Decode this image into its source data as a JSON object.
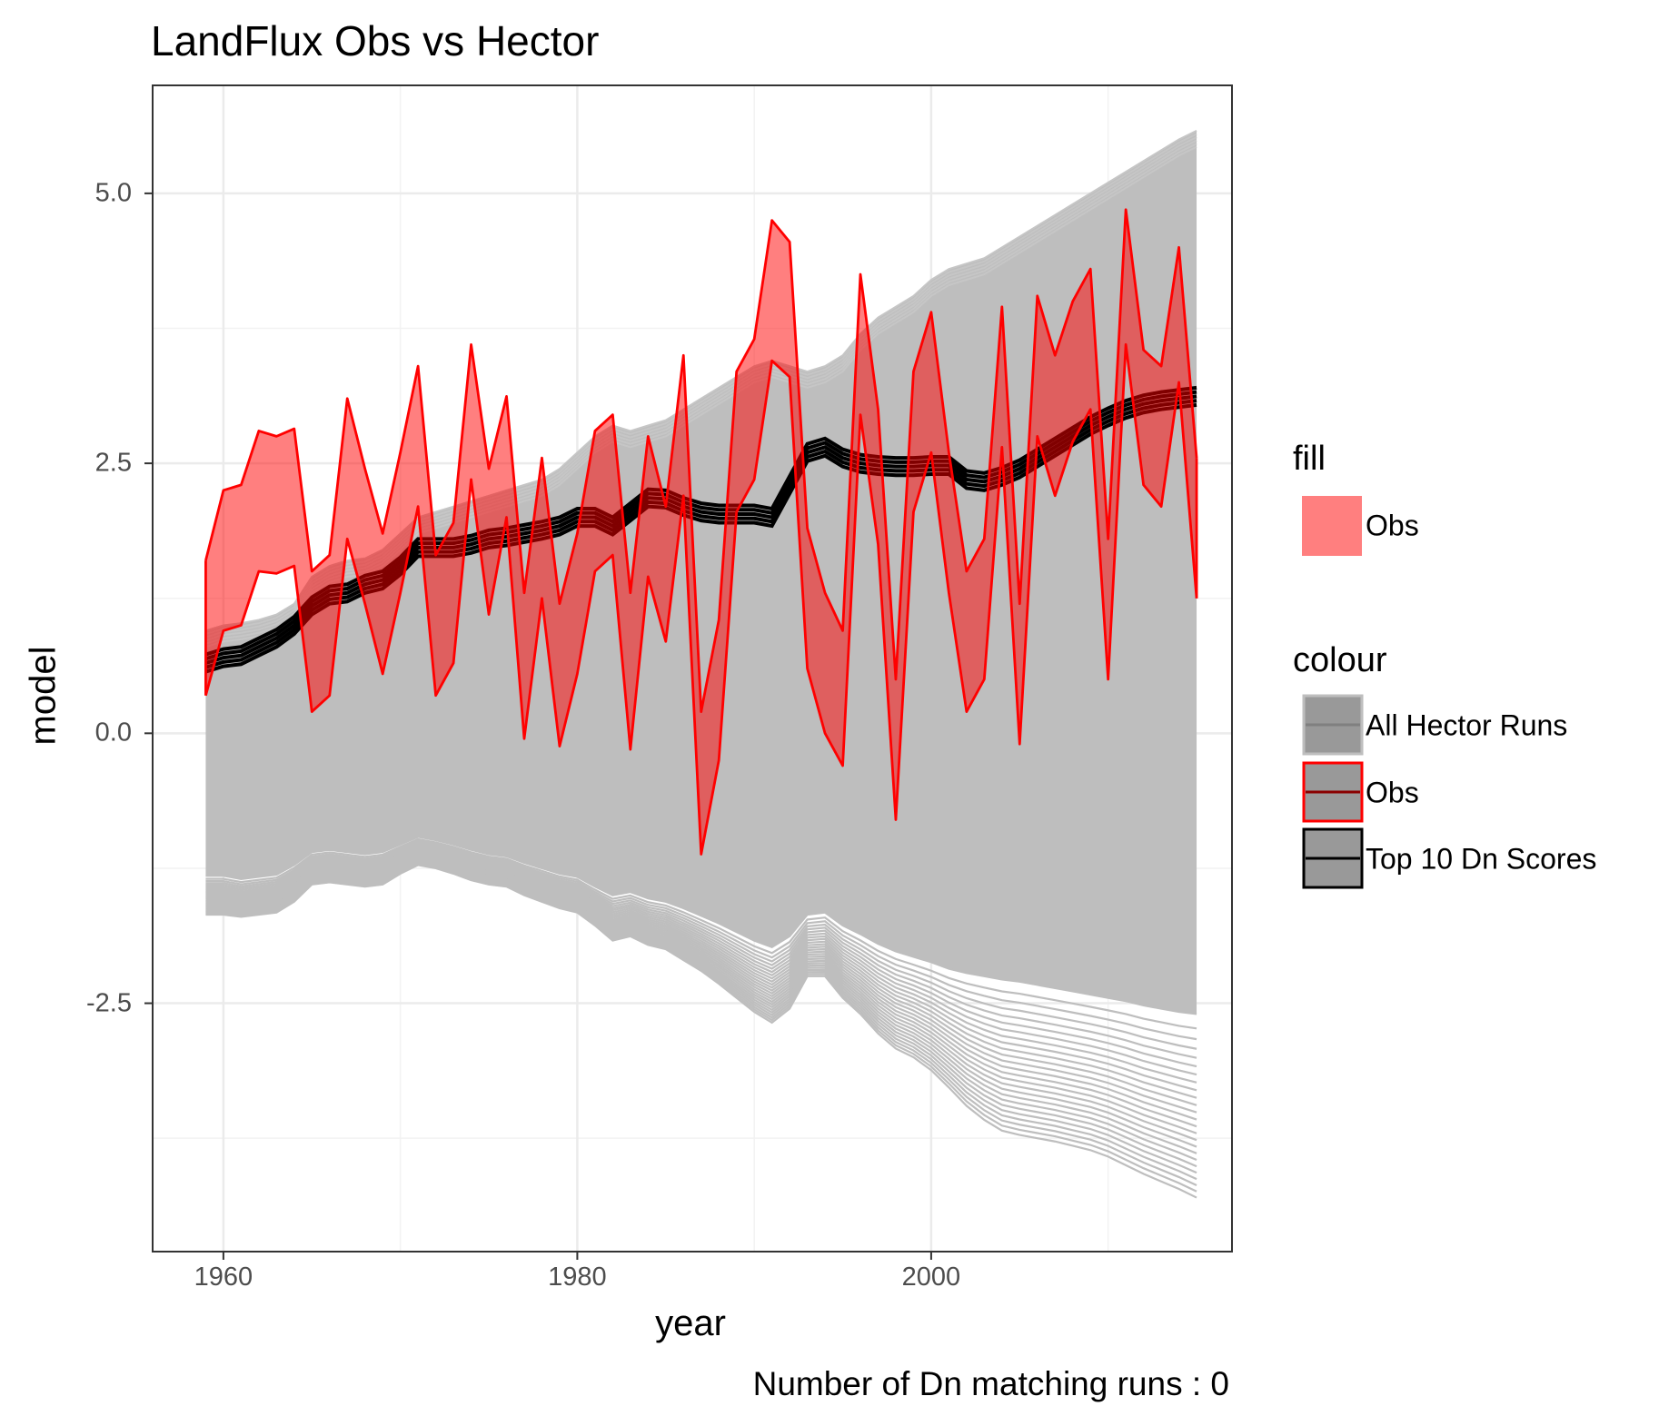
{
  "chart_data": {
    "type": "line",
    "title": "LandFlux Obs vs Hector",
    "xlabel": "year",
    "ylabel": "model",
    "caption": "Number of Dn matching runs : 0",
    "xlim": [
      1956,
      2017
    ],
    "ylim": [
      -4.8,
      6.0
    ],
    "x_ticks": [
      1960,
      1980,
      2000
    ],
    "y_ticks": [
      5.0,
      2.5,
      0.0,
      -2.5
    ],
    "y_tick_labels": [
      "5.0",
      "2.5",
      "0.0",
      "-2.5"
    ],
    "grid": true,
    "legend_position": "right",
    "legends": [
      {
        "title": "fill",
        "entries": [
          {
            "label": "Obs",
            "fill": "#FF7F7F"
          }
        ]
      },
      {
        "title": "colour",
        "entries": [
          {
            "label": "All Hector Runs",
            "color": "#808080"
          },
          {
            "label": "Obs",
            "color": "#FF0000"
          },
          {
            "label": "Top 10 Dn Scores",
            "color": "#000000"
          }
        ]
      }
    ],
    "colors": {
      "hector": "#BEBEBE",
      "obs_line": "#FF0000",
      "obs_fill": "#FF0000",
      "top10": "#000000"
    },
    "obs_years": [
      1959,
      1960,
      1961,
      1962,
      1963,
      1964,
      1965,
      1966,
      1967,
      1968,
      1969,
      1970,
      1971,
      1972,
      1973,
      1974,
      1975,
      1976,
      1977,
      1978,
      1979,
      1980,
      1981,
      1982,
      1983,
      1984,
      1985,
      1986,
      1987,
      1988,
      1989,
      1990,
      1991,
      1992,
      1993,
      1994,
      1995,
      1996,
      1997,
      1998,
      1999,
      2000,
      2001,
      2002,
      2003,
      2004,
      2005,
      2006,
      2007,
      2008,
      2009,
      2010,
      2011,
      2012,
      2013,
      2014,
      2015
    ],
    "obs_upper": [
      1.6,
      2.25,
      2.3,
      2.8,
      2.75,
      2.82,
      1.5,
      1.65,
      3.1,
      2.45,
      1.85,
      2.6,
      3.4,
      1.65,
      1.95,
      3.6,
      2.45,
      3.12,
      1.3,
      2.55,
      1.2,
      1.85,
      2.8,
      2.95,
      1.3,
      2.75,
      2.1,
      3.5,
      0.2,
      1.05,
      3.35,
      3.65,
      4.75,
      4.55,
      1.9,
      1.3,
      0.95,
      4.25,
      3.0,
      0.5,
      3.35,
      3.9,
      2.6,
      1.5,
      1.8,
      3.95,
      1.2,
      4.05,
      3.5,
      4.0,
      4.3,
      1.8,
      4.85,
      3.55,
      3.4,
      4.5,
      2.55
    ],
    "obs_lower": [
      0.35,
      0.95,
      1.0,
      1.5,
      1.48,
      1.55,
      0.2,
      0.35,
      1.8,
      1.2,
      0.55,
      1.3,
      2.1,
      0.35,
      0.65,
      2.35,
      1.1,
      2.0,
      -0.05,
      1.25,
      -0.12,
      0.55,
      1.5,
      1.65,
      -0.15,
      1.45,
      0.85,
      2.2,
      -1.12,
      -0.25,
      2.05,
      2.35,
      3.45,
      3.3,
      0.6,
      0.0,
      -0.3,
      2.95,
      1.75,
      -0.8,
      2.05,
      2.6,
      1.3,
      0.2,
      0.5,
      2.65,
      -0.1,
      2.75,
      2.2,
      2.7,
      3.0,
      0.5,
      3.6,
      2.3,
      2.1,
      3.25,
      1.25
    ],
    "model_years": [
      1959,
      1960,
      1961,
      1962,
      1963,
      1964,
      1965,
      1966,
      1967,
      1968,
      1969,
      1970,
      1971,
      1972,
      1973,
      1974,
      1975,
      1976,
      1977,
      1978,
      1979,
      1980,
      1981,
      1982,
      1983,
      1984,
      1985,
      1986,
      1987,
      1988,
      1989,
      1990,
      1991,
      1992,
      1993,
      1994,
      1995,
      1996,
      1997,
      1998,
      1999,
      2000,
      2001,
      2002,
      2003,
      2004,
      2005,
      2006,
      2007,
      2008,
      2009,
      2010,
      2011,
      2012,
      2013,
      2014,
      2015
    ],
    "hector_upper": [
      0.95,
      1.0,
      1.02,
      1.05,
      1.1,
      1.2,
      1.45,
      1.55,
      1.6,
      1.62,
      1.7,
      1.85,
      2.0,
      2.05,
      2.1,
      2.15,
      2.2,
      2.25,
      2.3,
      2.35,
      2.45,
      2.6,
      2.75,
      2.85,
      2.8,
      2.85,
      2.9,
      3.0,
      3.1,
      3.2,
      3.3,
      3.4,
      3.45,
      3.4,
      3.35,
      3.4,
      3.5,
      3.7,
      3.85,
      3.95,
      4.05,
      4.2,
      4.3,
      4.35,
      4.4,
      4.5,
      4.6,
      4.7,
      4.8,
      4.9,
      5.0,
      5.1,
      5.2,
      5.3,
      5.4,
      5.5,
      5.58
    ],
    "hector_lower": [
      -1.68,
      -1.68,
      -1.7,
      -1.68,
      -1.66,
      -1.56,
      -1.4,
      -1.38,
      -1.4,
      -1.42,
      -1.4,
      -1.3,
      -1.22,
      -1.25,
      -1.3,
      -1.36,
      -1.4,
      -1.42,
      -1.5,
      -1.56,
      -1.62,
      -1.66,
      -1.78,
      -1.92,
      -1.88,
      -1.96,
      -2.0,
      -2.1,
      -2.2,
      -2.32,
      -2.45,
      -2.58,
      -2.68,
      -2.55,
      -2.25,
      -2.25,
      -2.45,
      -2.6,
      -2.78,
      -2.92,
      -3.0,
      -3.12,
      -3.28,
      -3.45,
      -3.58,
      -3.68,
      -3.72,
      -3.75,
      -3.78,
      -3.82,
      -3.86,
      -3.92,
      -4.0,
      -4.08,
      -4.15,
      -4.22,
      -4.3
    ],
    "hector_core_lower": [
      -1.32,
      -1.32,
      -1.35,
      -1.33,
      -1.31,
      -1.22,
      -1.1,
      -1.08,
      -1.1,
      -1.12,
      -1.1,
      -1.03,
      -0.96,
      -0.99,
      -1.03,
      -1.08,
      -1.12,
      -1.14,
      -1.2,
      -1.25,
      -1.3,
      -1.33,
      -1.42,
      -1.5,
      -1.47,
      -1.53,
      -1.56,
      -1.62,
      -1.69,
      -1.76,
      -1.84,
      -1.92,
      -1.98,
      -1.88,
      -1.68,
      -1.66,
      -1.78,
      -1.86,
      -1.95,
      -2.02,
      -2.07,
      -2.12,
      -2.18,
      -2.22,
      -2.25,
      -2.28,
      -2.3,
      -2.33,
      -2.36,
      -2.39,
      -2.42,
      -2.45,
      -2.48,
      -2.52,
      -2.55,
      -2.58,
      -2.6
    ],
    "top10_center": [
      0.65,
      0.7,
      0.72,
      0.8,
      0.88,
      1.0,
      1.18,
      1.28,
      1.3,
      1.38,
      1.42,
      1.55,
      1.72,
      1.72,
      1.72,
      1.75,
      1.8,
      1.82,
      1.85,
      1.88,
      1.92,
      2.0,
      2.0,
      1.92,
      2.05,
      2.18,
      2.17,
      2.1,
      2.05,
      2.03,
      2.03,
      2.03,
      2.0,
      2.3,
      2.6,
      2.65,
      2.55,
      2.5,
      2.48,
      2.47,
      2.47,
      2.48,
      2.48,
      2.35,
      2.33,
      2.38,
      2.45,
      2.55,
      2.65,
      2.75,
      2.85,
      2.93,
      3.0,
      3.05,
      3.08,
      3.1,
      3.12
    ]
  }
}
